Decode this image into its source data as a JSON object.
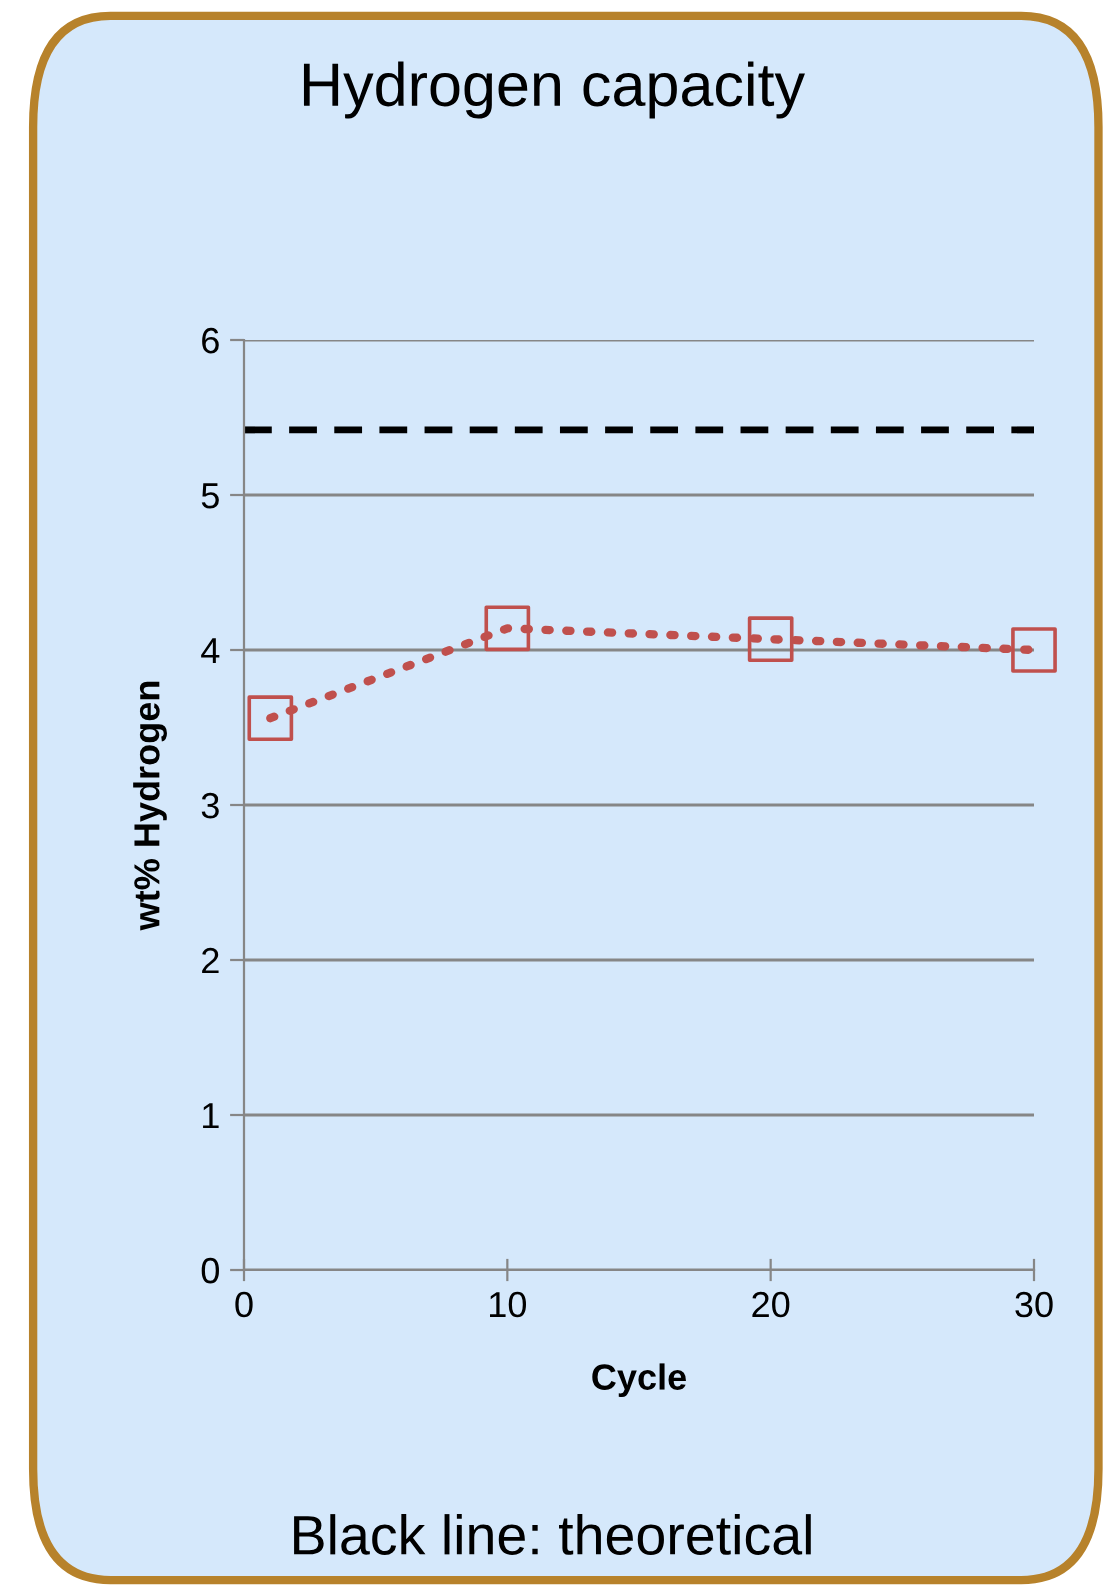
{
  "chart_data": {
    "type": "line",
    "title": "Hydrogen capacity",
    "xlabel": "Cycle",
    "ylabel": "wt% Hydrogen",
    "x": [
      1,
      10,
      20,
      30
    ],
    "series": [
      {
        "color": "#c0504d",
        "values": [
          3.56,
          4.14,
          4.07,
          4.0
        ]
      }
    ],
    "marker": "square",
    "line_style": "dotted",
    "xlim": [
      0,
      30
    ],
    "xticks": [
      0,
      10,
      20,
      30
    ],
    "ylim": [
      0,
      6
    ],
    "yticks": [
      0,
      1,
      2,
      3,
      4,
      5,
      6
    ],
    "grid": "y",
    "legend": false,
    "ref_lines": [
      {
        "axis": "y",
        "value": 5.42,
        "color": "#000000",
        "line_style": "dashed"
      }
    ],
    "annotations": [
      "Black line: theoretical"
    ]
  }
}
